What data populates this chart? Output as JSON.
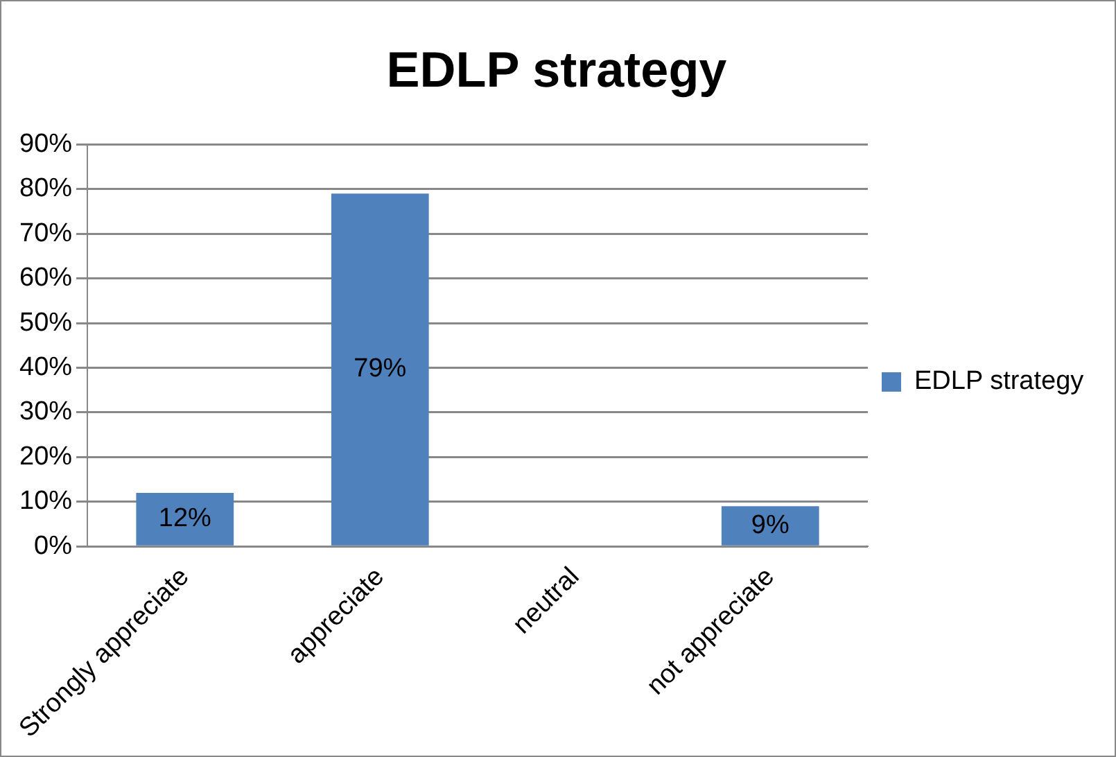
{
  "chart_data": {
    "type": "bar",
    "title": "EDLP strategy",
    "categories": [
      "Strongly appreciate",
      "appreciate",
      "neutral",
      "not appreciate"
    ],
    "series": [
      {
        "name": "EDLP strategy",
        "color": "#4f81bd",
        "values": [
          12,
          79,
          0,
          9
        ],
        "value_labels": [
          "12%",
          "79%",
          null,
          "9%"
        ]
      }
    ],
    "ylim": [
      0,
      90
    ],
    "yticks": [
      {
        "value": 0,
        "label": "0%"
      },
      {
        "value": 10,
        "label": "10%"
      },
      {
        "value": 20,
        "label": "20%"
      },
      {
        "value": 30,
        "label": "30%"
      },
      {
        "value": 40,
        "label": "40%"
      },
      {
        "value": 50,
        "label": "50%"
      },
      {
        "value": 60,
        "label": "60%"
      },
      {
        "value": 70,
        "label": "70%"
      },
      {
        "value": 80,
        "label": "80%"
      },
      {
        "value": 90,
        "label": "90%"
      }
    ],
    "grid": "y",
    "legend": "right"
  }
}
